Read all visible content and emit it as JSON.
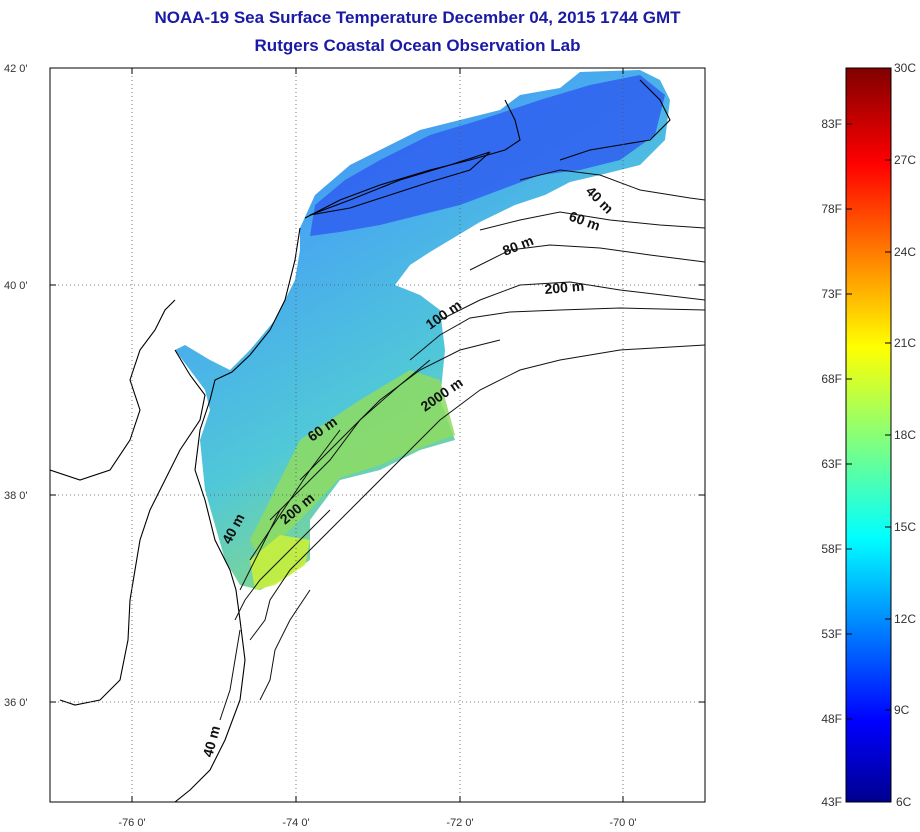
{
  "title": "NOAA-19 Sea Surface Temperature December 04, 2015 1744 GMT",
  "subtitle": "Rutgers Coastal Ocean Observation Lab",
  "map": {
    "lat_labels": [
      "42 0'",
      "40 0'",
      "38 0'",
      "36 0'"
    ],
    "lon_labels": [
      "-76 0'",
      "-74 0'",
      "-72 0'",
      "-70 0'"
    ],
    "lat_range": [
      35,
      42
    ],
    "lon_range": [
      -77,
      -69
    ],
    "grid": "dotted",
    "isobath_labels": [
      "40 m",
      "60 m",
      "80 m",
      "200 m",
      "100 m",
      "2000 m",
      "60 m",
      "200 m",
      "40 m",
      "40 m"
    ]
  },
  "colorbar": {
    "colormap": "jet",
    "celsius_range": [
      6,
      30
    ],
    "celsius_labels": [
      "30C",
      "27C",
      "24C",
      "21C",
      "18C",
      "15C",
      "12C",
      "9C",
      "6C"
    ],
    "fahrenheit_labels": [
      "83F",
      "78F",
      "73F",
      "68F",
      "63F",
      "58F",
      "53F",
      "48F",
      "43F"
    ]
  },
  "colors": {
    "title": "#1a1aa6",
    "cold": "#1e3cf0",
    "mid": "#3aa8f0",
    "warm": "#8ee05a",
    "warmest": "#c8f03c"
  }
}
